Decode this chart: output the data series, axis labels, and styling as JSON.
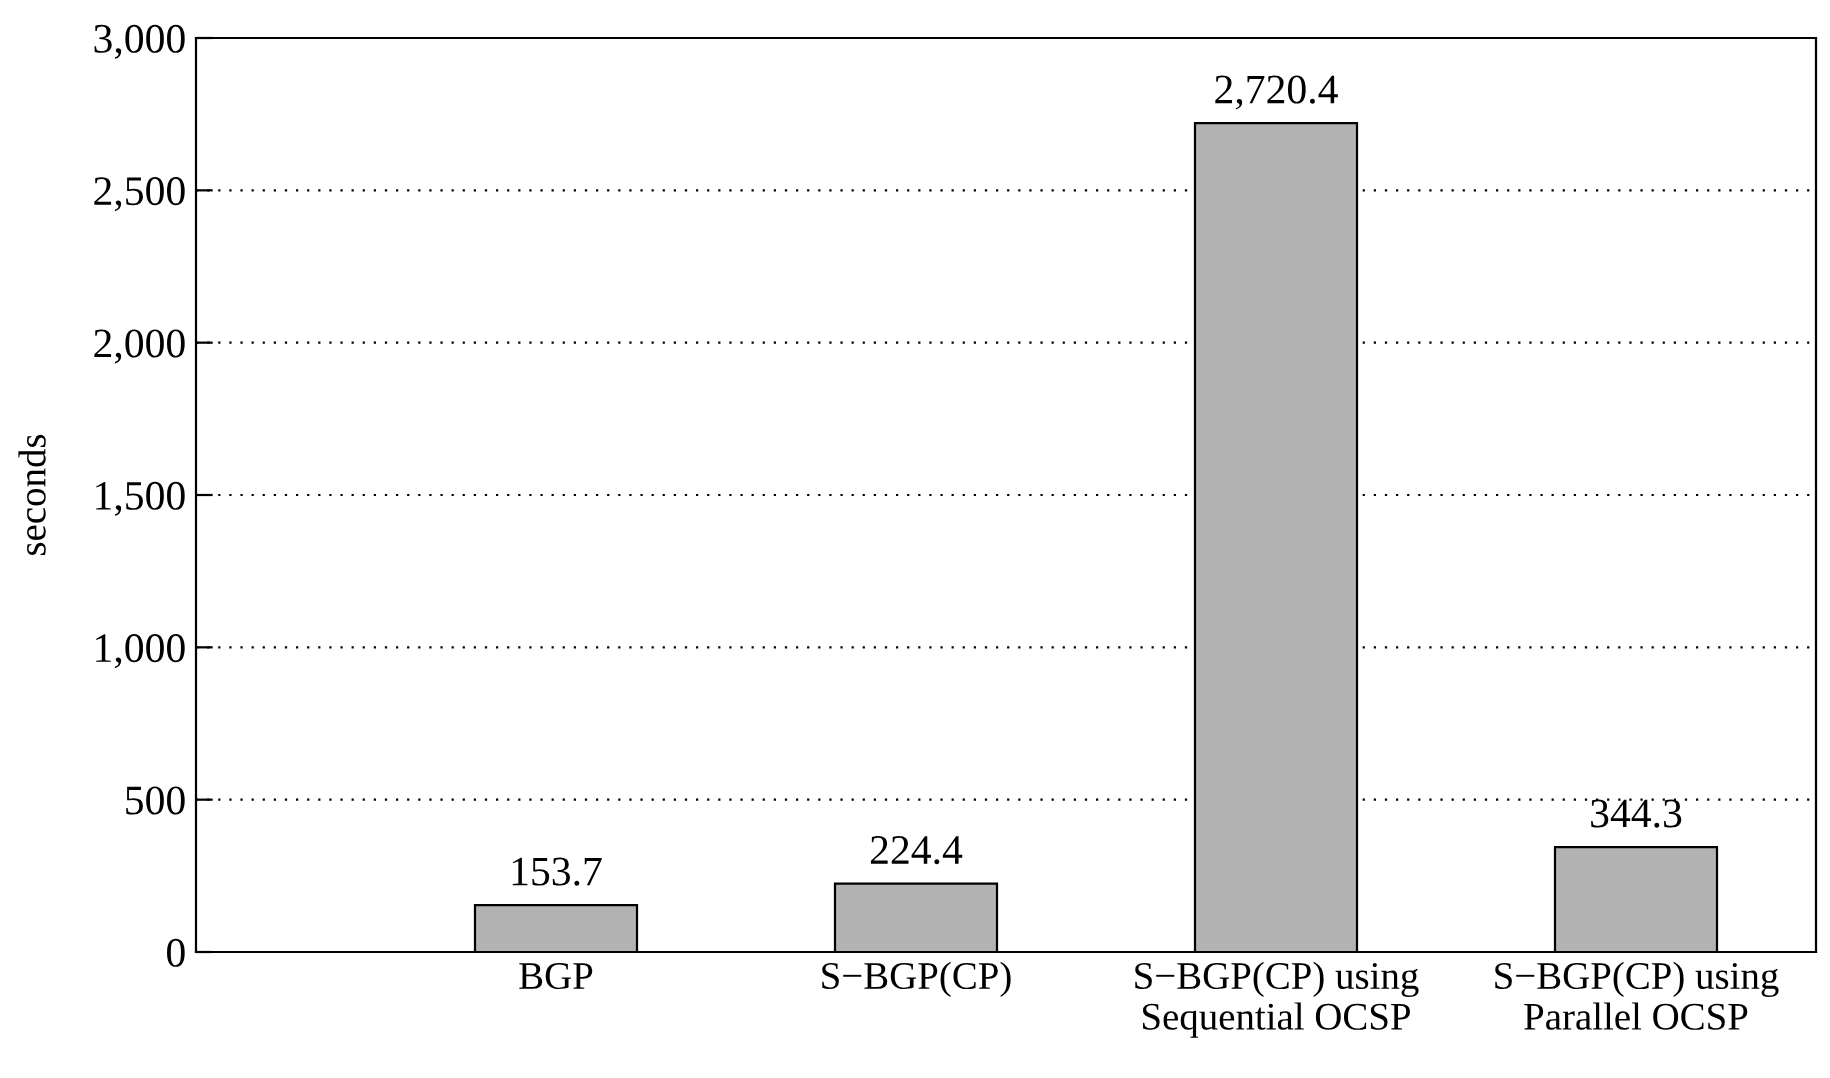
{
  "chart_data": {
    "type": "bar",
    "ylabel": "seconds",
    "categories": [
      "BGP",
      "S−BGP(CP)",
      "S−BGP(CP) using\nSequential OCSP",
      "S−BGP(CP) using\nParallel OCSP"
    ],
    "values": [
      153.7,
      224.4,
      2720.4,
      344.3
    ],
    "value_labels": [
      "153.7",
      "224.4",
      "2,720.4",
      "344.3"
    ],
    "color": "#b3b3b3",
    "ylim": [
      0,
      3000
    ],
    "yticks": [
      0,
      {
        "value": 500,
        "label": "500"
      },
      {
        "value": 1000,
        "label": "1,000"
      },
      {
        "value": 1500,
        "label": "1,500"
      },
      {
        "value": 2000,
        "label": "2,000"
      },
      {
        "value": 2500,
        "label": "2,500"
      },
      {
        "value": 3000,
        "label": "3,000"
      }
    ],
    "grid": "y",
    "line_style": "dotted"
  }
}
